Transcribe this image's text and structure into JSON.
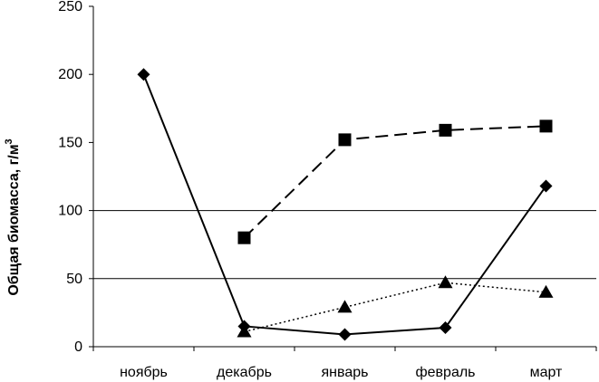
{
  "chart_data": {
    "type": "line",
    "categories": [
      "ноябрь",
      "декабрь",
      "январь",
      "февраль",
      "март"
    ],
    "ylabel": "Общая биомасса, г/м",
    "ylabel_sup": "3",
    "ylim": [
      0,
      250
    ],
    "yticks": [
      0,
      50,
      100,
      150,
      200,
      250
    ],
    "gridlines": [
      50,
      100
    ],
    "series": [
      {
        "marker": "diamond",
        "line": "solid",
        "values": [
          200,
          15,
          9,
          14,
          118
        ]
      },
      {
        "marker": "square",
        "line": "dashed",
        "values": [
          null,
          80,
          152,
          159,
          162
        ]
      },
      {
        "marker": "triangle",
        "line": "dotted",
        "values": [
          null,
          11,
          29,
          47,
          40
        ]
      }
    ],
    "colors": {
      "line": "#000000",
      "grid": "#000000"
    }
  }
}
